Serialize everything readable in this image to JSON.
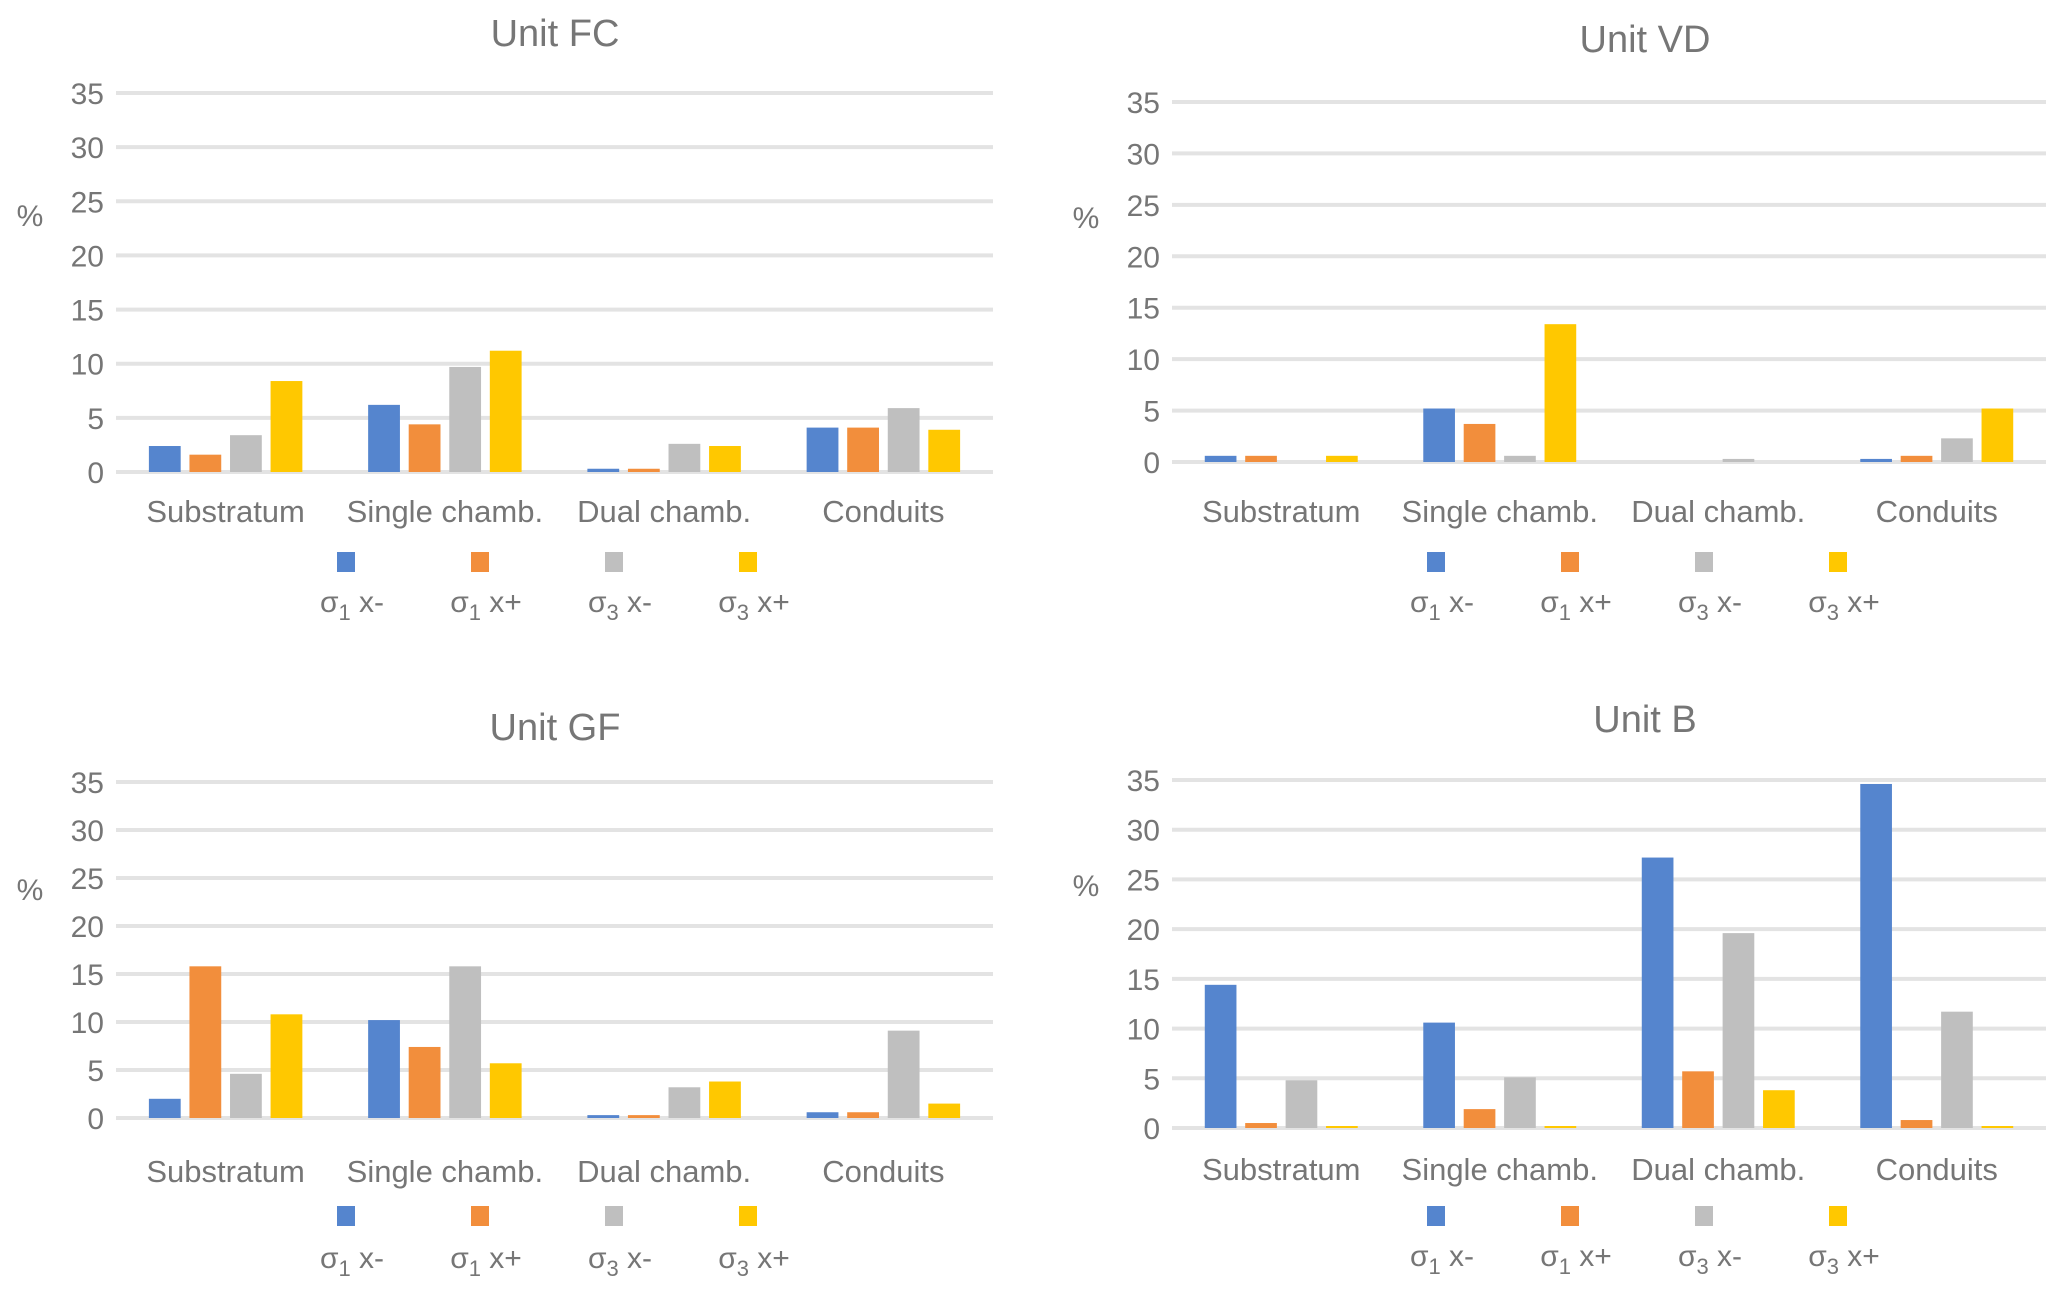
{
  "chart_data": [
    {
      "type": "bar",
      "title": "Unit FC",
      "ylabel": "%",
      "xlabel": "",
      "ylim": [
        0,
        35
      ],
      "yticks": [
        0,
        5,
        10,
        15,
        20,
        25,
        30,
        35
      ],
      "grid": true,
      "legend": "bottom",
      "categories": [
        "Substratum",
        "Single chamb.",
        "Dual chamb.",
        "Conduits"
      ],
      "series": [
        {
          "name": "σ1 x-",
          "symbol": "σ",
          "sub": "1",
          "suffix": " x-",
          "color": "#5585CE",
          "values": [
            2.4,
            6.2,
            0.3,
            4.1
          ]
        },
        {
          "name": "σ1 x+",
          "symbol": "σ",
          "sub": "1",
          "suffix": " x+",
          "color": "#F28E3C",
          "values": [
            1.6,
            4.4,
            0.3,
            4.1
          ]
        },
        {
          "name": "σ3 x-",
          "symbol": "σ",
          "sub": "3",
          "suffix": " x-",
          "color": "#BFBFBF",
          "values": [
            3.4,
            9.7,
            2.6,
            5.9
          ]
        },
        {
          "name": "σ3 x+",
          "symbol": "σ",
          "sub": "3",
          "suffix": " x+",
          "color": "#FFC800",
          "values": [
            8.4,
            11.2,
            2.4,
            3.9
          ]
        }
      ]
    },
    {
      "type": "bar",
      "title": "Unit VD",
      "ylabel": "%",
      "xlabel": "",
      "ylim": [
        0,
        35
      ],
      "yticks": [
        0,
        5,
        10,
        15,
        20,
        25,
        30,
        35
      ],
      "grid": true,
      "legend": "bottom",
      "categories": [
        "Substratum",
        "Single chamb.",
        "Dual chamb.",
        "Conduits"
      ],
      "series": [
        {
          "name": "σ1 x-",
          "symbol": "σ",
          "sub": "1",
          "suffix": " x-",
          "color": "#5585CE",
          "values": [
            0.6,
            5.2,
            0,
            0.3
          ]
        },
        {
          "name": "σ1 x+",
          "symbol": "σ",
          "sub": "1",
          "suffix": " x+",
          "color": "#F28E3C",
          "values": [
            0.6,
            3.7,
            0,
            0.6
          ]
        },
        {
          "name": "σ3 x-",
          "symbol": "σ",
          "sub": "3",
          "suffix": " x-",
          "color": "#BFBFBF",
          "values": [
            0,
            0.6,
            0.3,
            2.3
          ]
        },
        {
          "name": "σ3 x+",
          "symbol": "σ",
          "sub": "3",
          "suffix": " x+",
          "color": "#FFC800",
          "values": [
            0.6,
            13.4,
            0,
            5.2
          ]
        }
      ]
    },
    {
      "type": "bar",
      "title": "Unit GF",
      "ylabel": "%",
      "xlabel": "",
      "ylim": [
        0,
        35
      ],
      "yticks": [
        0,
        5,
        10,
        15,
        20,
        25,
        30,
        35
      ],
      "grid": true,
      "legend": "bottom",
      "categories": [
        "Substratum",
        "Single chamb.",
        "Dual chamb.",
        "Conduits"
      ],
      "series": [
        {
          "name": "σ1 x-",
          "symbol": "σ",
          "sub": "1",
          "suffix": " x-",
          "color": "#5585CE",
          "values": [
            2.0,
            10.2,
            0.3,
            0.6
          ]
        },
        {
          "name": "σ1 x+",
          "symbol": "σ",
          "sub": "1",
          "suffix": " x+",
          "color": "#F28E3C",
          "values": [
            15.8,
            7.4,
            0.3,
            0.6
          ]
        },
        {
          "name": "σ3 x-",
          "symbol": "σ",
          "sub": "3",
          "suffix": " x-",
          "color": "#BFBFBF",
          "values": [
            4.6,
            15.8,
            3.2,
            9.1
          ]
        },
        {
          "name": "σ3 x+",
          "symbol": "σ",
          "sub": "3",
          "suffix": " x+",
          "color": "#FFC800",
          "values": [
            10.8,
            5.7,
            3.8,
            1.5
          ]
        }
      ]
    },
    {
      "type": "bar",
      "title": "Unit B",
      "ylabel": "%",
      "xlabel": "",
      "ylim": [
        0,
        35
      ],
      "yticks": [
        0,
        5,
        10,
        15,
        20,
        25,
        30,
        35
      ],
      "grid": true,
      "legend": "bottom",
      "categories": [
        "Substratum",
        "Single chamb.",
        "Dual chamb.",
        "Conduits"
      ],
      "series": [
        {
          "name": "σ1 x-",
          "symbol": "σ",
          "sub": "1",
          "suffix": " x-",
          "color": "#5585CE",
          "values": [
            14.4,
            10.6,
            27.2,
            34.6
          ]
        },
        {
          "name": "σ1 x+",
          "symbol": "σ",
          "sub": "1",
          "suffix": " x+",
          "color": "#F28E3C",
          "values": [
            0.5,
            1.9,
            5.7,
            0.8
          ]
        },
        {
          "name": "σ3 x-",
          "symbol": "σ",
          "sub": "3",
          "suffix": " x-",
          "color": "#BFBFBF",
          "values": [
            4.8,
            5.1,
            19.6,
            11.7
          ]
        },
        {
          "name": "σ3 x+",
          "symbol": "σ",
          "sub": "3",
          "suffix": " x+",
          "color": "#FFC800",
          "values": [
            0.2,
            0.2,
            3.8,
            0.2
          ]
        }
      ]
    }
  ]
}
